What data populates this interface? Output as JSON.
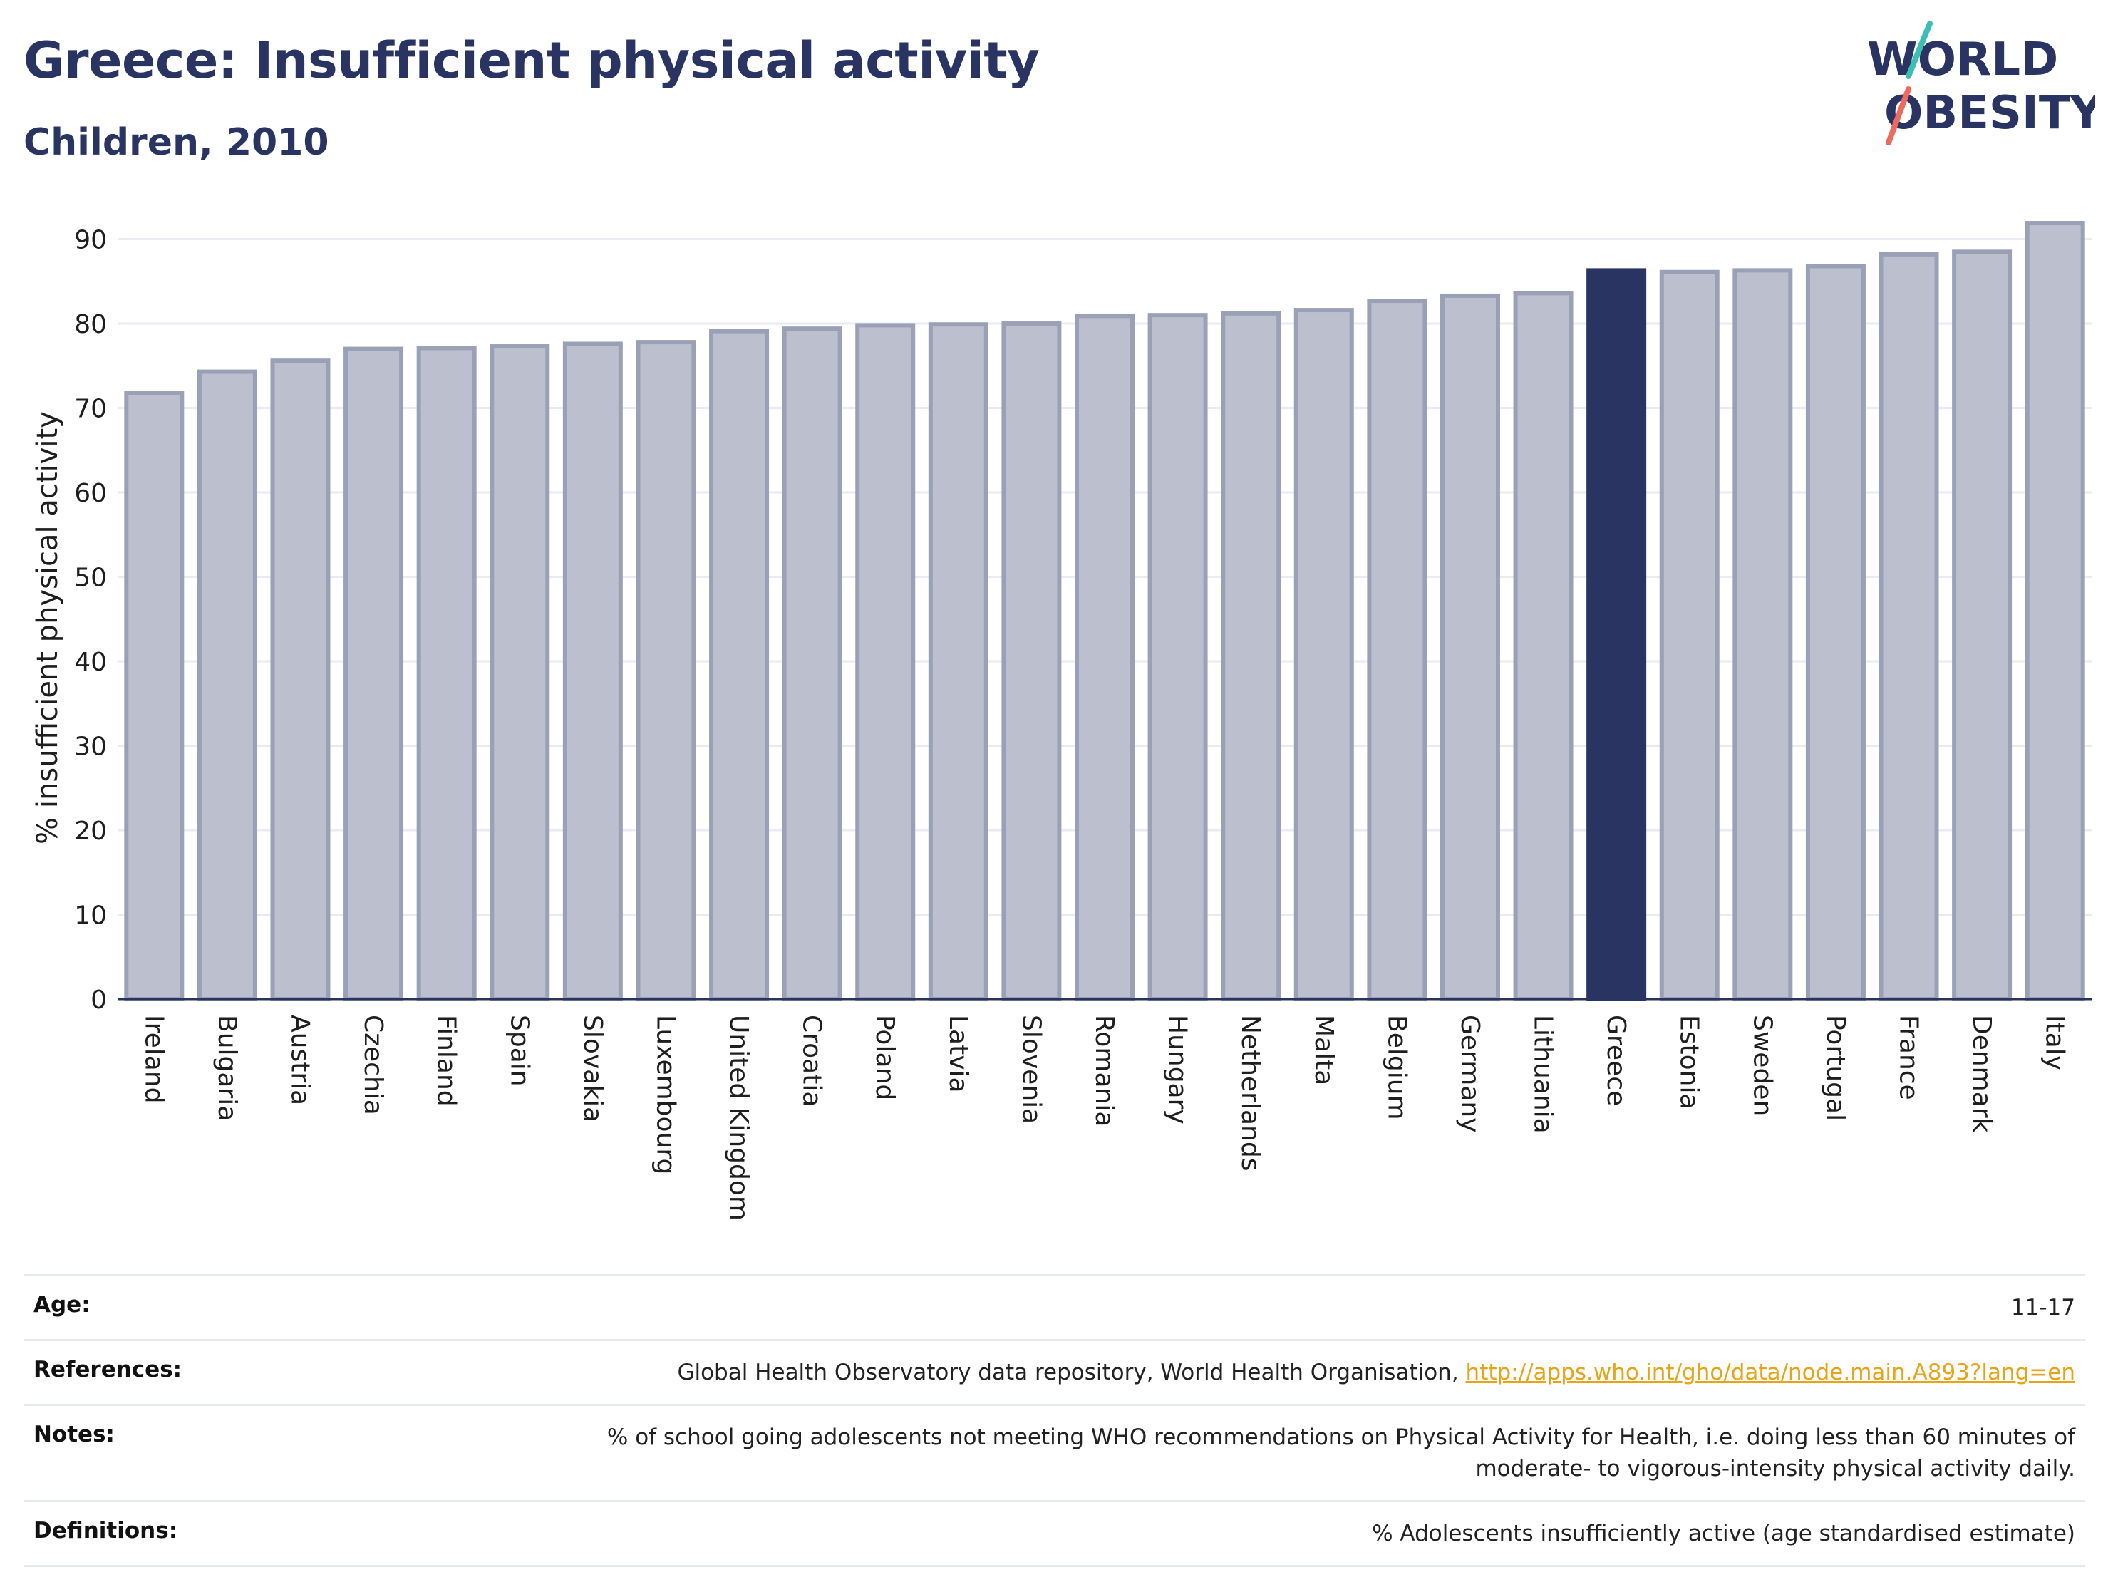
{
  "header": {
    "title": "Greece: Insufficient physical activity",
    "subtitle": "Children, 2010",
    "logo": {
      "line1": "WORLD",
      "line2": "OBESITY"
    }
  },
  "colors": {
    "title": "#2a3463",
    "bar": "#bcc0ce",
    "bar_stroke": "#9aa0b6",
    "highlight": "#2a3463",
    "link": "#e8a317",
    "logo_teal": "#3bbfb4",
    "logo_coral": "#ec6a5e"
  },
  "chart_data": {
    "type": "bar",
    "ylabel": "% insufficient physical activity",
    "ylim": [
      0,
      93
    ],
    "yticks": [
      0,
      10,
      20,
      30,
      40,
      50,
      60,
      70,
      80,
      90
    ],
    "grid": true,
    "highlight": "Greece",
    "categories": [
      "Ireland",
      "Bulgaria",
      "Austria",
      "Czechia",
      "Finland",
      "Spain",
      "Slovakia",
      "Luxembourg",
      "United Kingdom",
      "Croatia",
      "Poland",
      "Latvia",
      "Slovenia",
      "Romania",
      "Hungary",
      "Netherlands",
      "Malta",
      "Belgium",
      "Germany",
      "Lithuania",
      "Greece",
      "Estonia",
      "Sweden",
      "Portugal",
      "France",
      "Denmark",
      "Italy"
    ],
    "values": [
      71.8,
      74.3,
      75.6,
      77.0,
      77.1,
      77.3,
      77.6,
      77.8,
      79.1,
      79.4,
      79.8,
      79.9,
      80.0,
      80.9,
      81.0,
      81.2,
      81.6,
      82.7,
      83.3,
      83.6,
      86.3,
      86.1,
      86.3,
      86.8,
      88.2,
      88.5,
      91.9
    ]
  },
  "info": {
    "age": {
      "label": "Age:",
      "value": "11-17"
    },
    "references": {
      "label": "References:",
      "value": "Global Health Observatory data repository, World Health Organisation, ",
      "link": "http://apps.who.int/gho/data/node.main.A893?lang=en"
    },
    "notes": {
      "label": "Notes:",
      "line1": "% of school going adolescents not meeting WHO recommendations on Physical Activity for Health, i.e. doing less than 60 minutes of",
      "line2": "moderate- to vigorous-intensity physical activity daily."
    },
    "definitions": {
      "label": "Definitions:",
      "value": "% Adolescents insufficiently active (age standardised estimate)"
    }
  }
}
